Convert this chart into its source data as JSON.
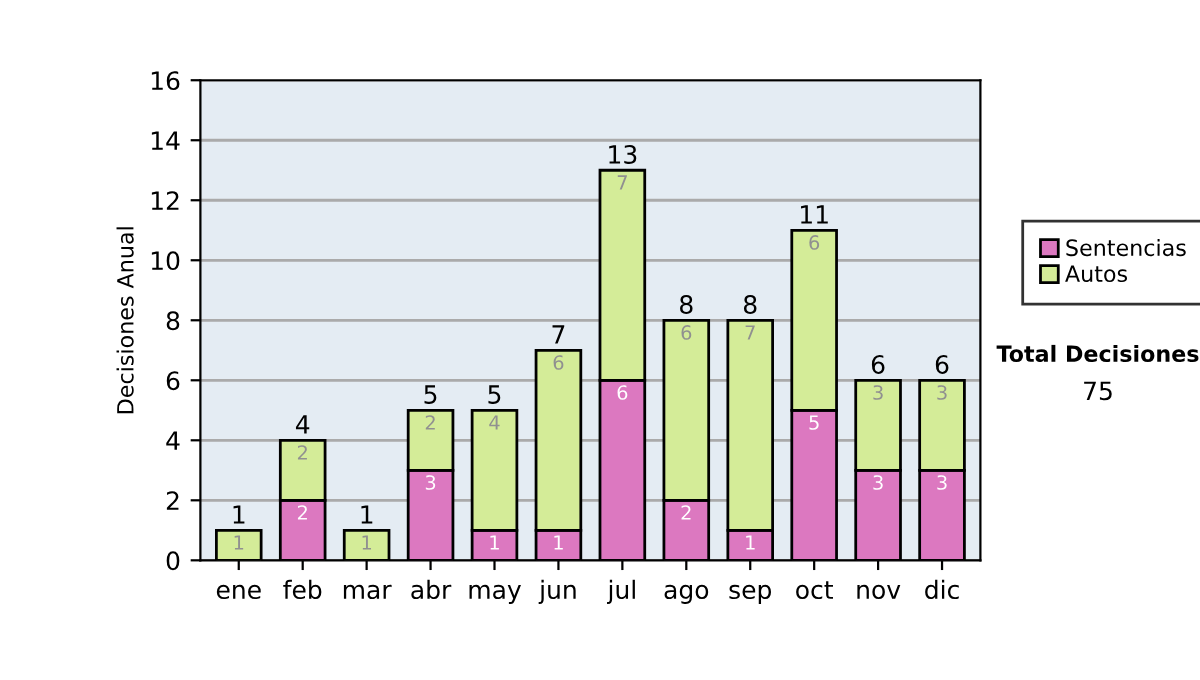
{
  "chart_data": {
    "type": "bar",
    "stacked": true,
    "ylabel": "Decisiones Anual",
    "categories": [
      "ene",
      "feb",
      "mar",
      "abr",
      "may",
      "jun",
      "jul",
      "ago",
      "sep",
      "oct",
      "nov",
      "dic"
    ],
    "series": [
      {
        "name": "Sentencias",
        "color": "#dc78c0",
        "values": [
          0,
          2,
          0,
          3,
          1,
          1,
          6,
          2,
          1,
          5,
          3,
          3
        ],
        "value_labels": [
          null,
          "2",
          null,
          "3",
          "1",
          "1",
          "6",
          "2",
          "1",
          "5",
          "3",
          "3"
        ]
      },
      {
        "name": "Autos",
        "color": "#d4ec98",
        "values": [
          1,
          2,
          1,
          2,
          4,
          6,
          7,
          6,
          7,
          6,
          3,
          3
        ],
        "value_labels": [
          "1",
          "2",
          "1",
          "2",
          "4",
          "6",
          "7",
          "6",
          "7",
          "6",
          "3",
          "3"
        ]
      }
    ],
    "totals": [
      "1",
      "4",
      "1",
      "5",
      "5",
      "7",
      "13",
      "8",
      "8",
      "11",
      "6",
      "6"
    ],
    "ylim": [
      0,
      16
    ],
    "yticks": [
      0,
      2,
      4,
      6,
      8,
      10,
      12,
      14,
      16
    ],
    "grid": "y",
    "legend": "right",
    "annotations": [
      "Total Decisiones",
      "75"
    ]
  }
}
